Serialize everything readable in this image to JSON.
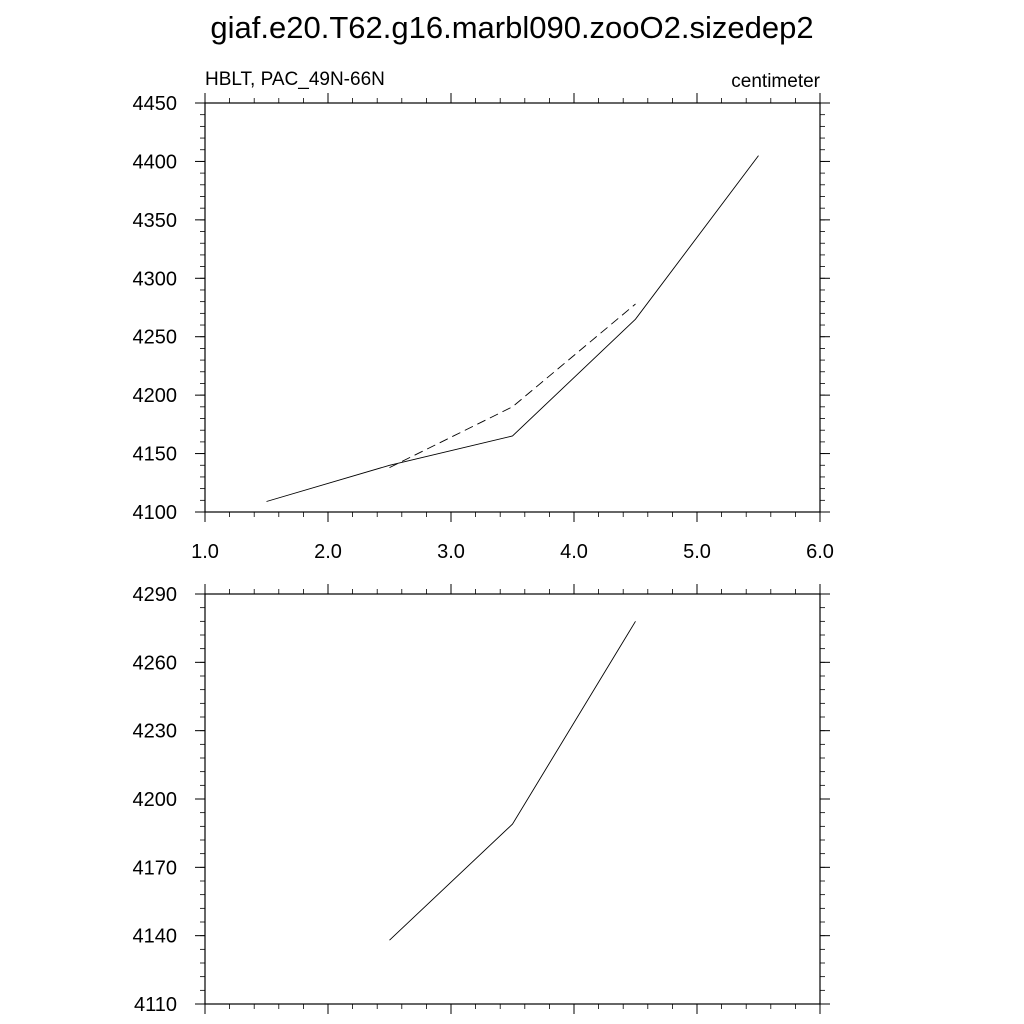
{
  "title": "giaf.e20.T62.g16.marbl090.zooO2.sizedep2",
  "chart_data": [
    {
      "type": "line",
      "left_string": "HBLT, PAC_49N-66N",
      "right_string": "centimeter",
      "xlim": [
        1.0,
        6.0
      ],
      "ylim": [
        4100,
        4450
      ],
      "x_ticks": [
        1.0,
        2.0,
        3.0,
        4.0,
        5.0,
        6.0
      ],
      "x_tick_labels": [
        "1.0",
        "2.0",
        "3.0",
        "4.0",
        "5.0",
        "6.0"
      ],
      "y_ticks": [
        4100,
        4150,
        4200,
        4250,
        4300,
        4350,
        4400,
        4450
      ],
      "y_tick_labels": [
        "4100",
        "4150",
        "4200",
        "4250",
        "4300",
        "4350",
        "4400",
        "4450"
      ],
      "grid": false,
      "series": [
        {
          "style": "solid",
          "color": "#000000",
          "x": [
            1.5,
            2.5,
            3.5,
            4.5,
            5.5
          ],
          "y": [
            4109,
            4140,
            4165,
            4265,
            4405
          ]
        },
        {
          "style": "dashed",
          "color": "#000000",
          "x": [
            2.5,
            3.5,
            4.5
          ],
          "y": [
            4138,
            4190,
            4278
          ]
        }
      ]
    },
    {
      "type": "line",
      "xlim": [
        1.0,
        6.0
      ],
      "ylim": [
        4110,
        4290
      ],
      "x_ticks": [
        1.0,
        2.0,
        3.0,
        4.0,
        5.0,
        6.0
      ],
      "x_tick_labels": [],
      "y_ticks": [
        4110,
        4140,
        4170,
        4200,
        4230,
        4260,
        4290
      ],
      "y_tick_labels": [
        "4110",
        "4140",
        "4170",
        "4200",
        "4230",
        "4260",
        "4290"
      ],
      "grid": false,
      "series": [
        {
          "style": "solid",
          "color": "#000000",
          "x": [
            2.5,
            3.5,
            4.5
          ],
          "y": [
            4138,
            4189,
            4278
          ]
        }
      ]
    }
  ]
}
